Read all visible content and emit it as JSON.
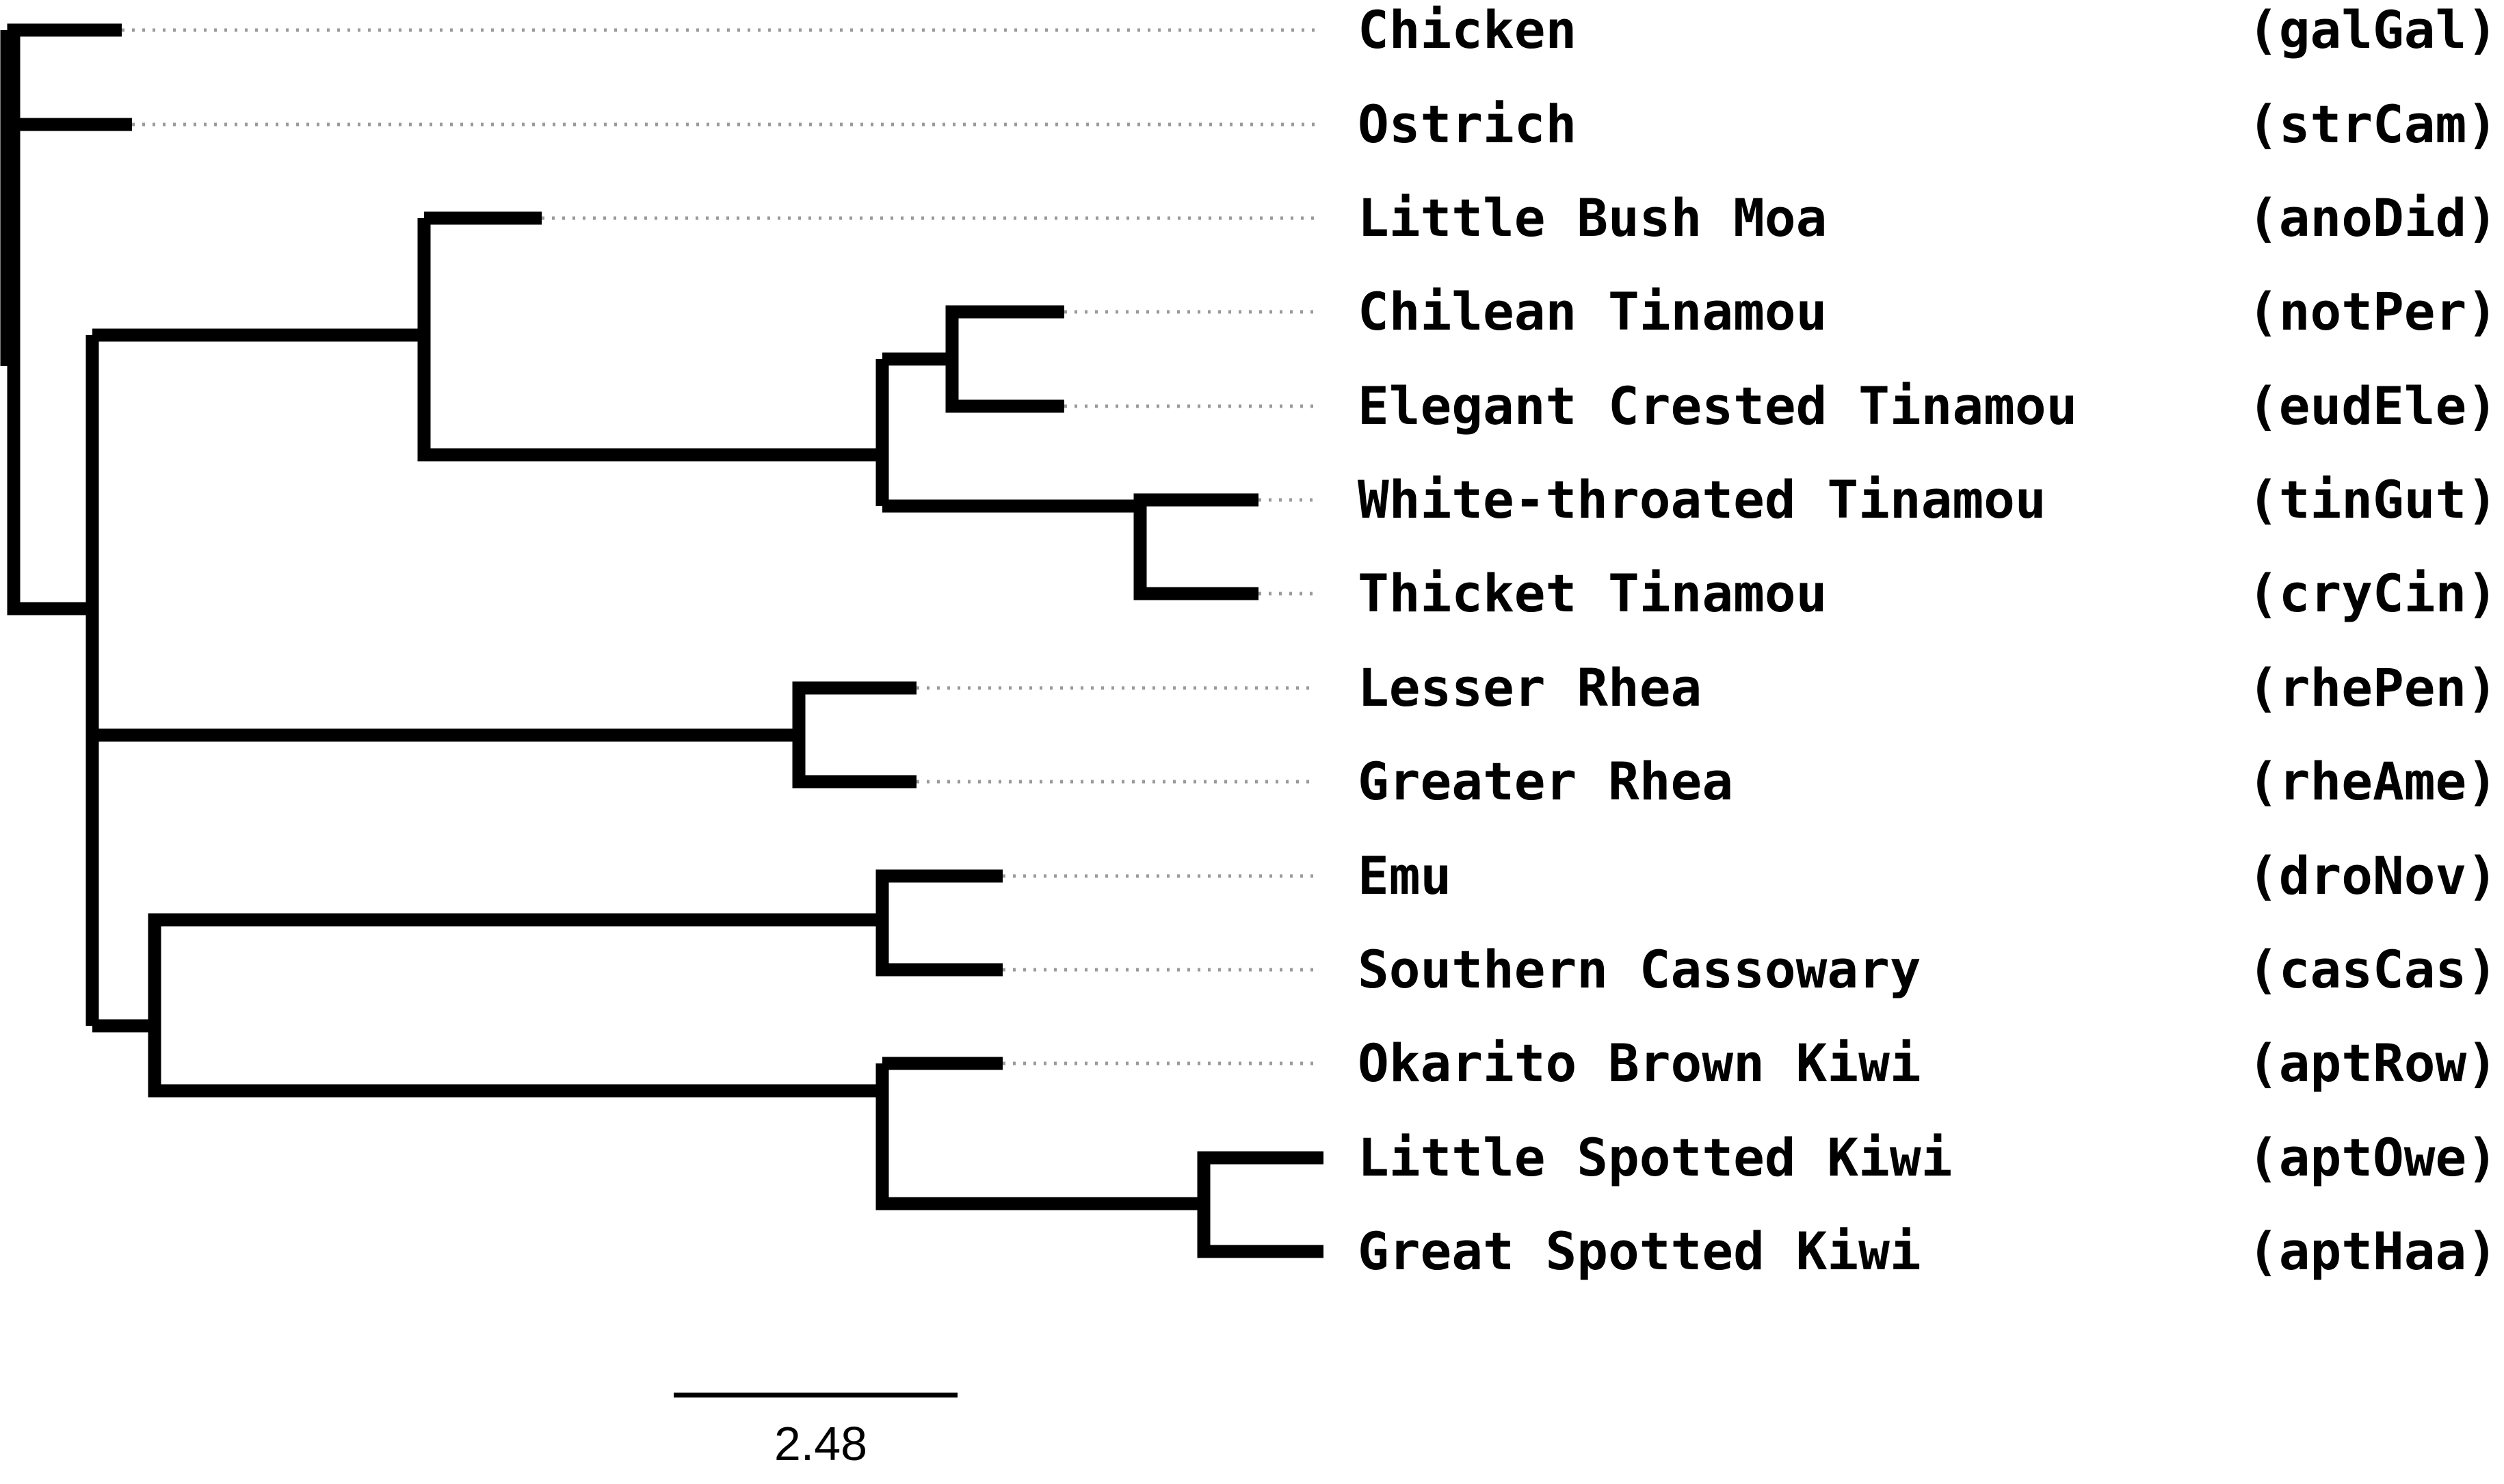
{
  "tree": {
    "taxa": [
      {
        "name": "Chicken",
        "code": "(galGal)"
      },
      {
        "name": "Ostrich",
        "code": "(strCam)"
      },
      {
        "name": "Little Bush Moa",
        "code": "(anoDid)"
      },
      {
        "name": "Chilean Tinamou",
        "code": "(notPer)"
      },
      {
        "name": "Elegant Crested Tinamou",
        "code": "(eudEle)"
      },
      {
        "name": "White-throated Tinamou",
        "code": "(tinGut)"
      },
      {
        "name": "Thicket Tinamou",
        "code": "(cryCin)"
      },
      {
        "name": "Lesser Rhea",
        "code": "(rhePen)"
      },
      {
        "name": "Greater Rhea",
        "code": "(rheAme)"
      },
      {
        "name": "Emu",
        "code": "(droNov)"
      },
      {
        "name": "Southern Cassowary",
        "code": "(casCas)"
      },
      {
        "name": "Okarito Brown Kiwi",
        "code": "(aptRow)"
      },
      {
        "name": "Little Spotted Kiwi",
        "code": "(aptOwe)"
      },
      {
        "name": "Great Spotted Kiwi",
        "code": "(aptHaa)"
      }
    ],
    "newick": "((galGal,strCam),((anoDid,((notPer,eudEle),(tinGut,cryCin))),(rhePen,rheAme),((droNov,casCas),(aptRow,(aptOwe,aptHaa)))));"
  },
  "scale_bar": {
    "label": "2.48",
    "length": 2.48
  },
  "colors": {
    "branch": "#000000",
    "leader": "#9a9a9a",
    "text": "#000000"
  }
}
